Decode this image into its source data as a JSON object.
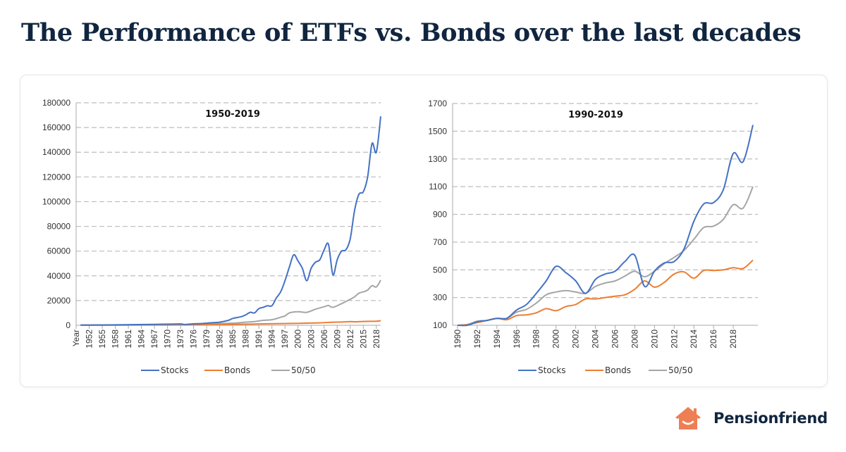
{
  "header": {
    "title": "The Performance of ETFs vs. Bonds over the last decades"
  },
  "brand": {
    "name": "Pensionfriend",
    "logo_icon": "house-smile-icon",
    "color": "#ee7f55",
    "text_color": "#10253f"
  },
  "chart_data": [
    {
      "type": "line",
      "title": "1950-2019",
      "xlabel": "",
      "ylabel": "",
      "xlim": [
        1949,
        2019
      ],
      "ylim": [
        0,
        180000
      ],
      "yticks": [
        0,
        20000,
        40000,
        60000,
        80000,
        100000,
        120000,
        140000,
        160000,
        180000
      ],
      "xtick_labels": [
        "Year",
        "1952",
        "1955",
        "1958",
        "1961",
        "1964",
        "1967",
        "1970",
        "1973",
        "1976",
        "1979",
        "1982",
        "1985",
        "1988",
        "1991",
        "1994",
        "1997",
        "2000",
        "2003",
        "2006",
        "2009",
        "2012",
        "2015",
        "2018"
      ],
      "grid": true,
      "legend": "bottom",
      "series": [
        {
          "name": "Stocks",
          "color": "#4472c4",
          "points": [
            [
              1950,
              100
            ],
            [
              1955,
              250
            ],
            [
              1960,
              400
            ],
            [
              1965,
              650
            ],
            [
              1970,
              900
            ],
            [
              1973,
              1100
            ],
            [
              1974,
              600
            ],
            [
              1976,
              1200
            ],
            [
              1978,
              1400
            ],
            [
              1980,
              2000
            ],
            [
              1982,
              2500
            ],
            [
              1984,
              4000
            ],
            [
              1985,
              5500
            ],
            [
              1987,
              7000
            ],
            [
              1988,
              8500
            ],
            [
              1989,
              10500
            ],
            [
              1990,
              10000
            ],
            [
              1991,
              13500
            ],
            [
              1992,
              14500
            ],
            [
              1993,
              15800
            ],
            [
              1994,
              15800
            ],
            [
              1995,
              22000
            ],
            [
              1996,
              27000
            ],
            [
              1997,
              36000
            ],
            [
              1998,
              47000
            ],
            [
              1999,
              57000
            ],
            [
              2000,
              52000
            ],
            [
              2001,
              46000
            ],
            [
              2002,
              36000
            ],
            [
              2003,
              46000
            ],
            [
              2004,
              51000
            ],
            [
              2005,
              53000
            ],
            [
              2006,
              61000
            ],
            [
              2007,
              65500
            ],
            [
              2008,
              41000
            ],
            [
              2009,
              53000
            ],
            [
              2010,
              60000
            ],
            [
              2011,
              61000
            ],
            [
              2012,
              70000
            ],
            [
              2013,
              93000
            ],
            [
              2014,
              106000
            ],
            [
              2015,
              108000
            ],
            [
              2016,
              120000
            ],
            [
              2017,
              147000
            ],
            [
              2018,
              140000
            ],
            [
              2019,
              169000
            ]
          ]
        },
        {
          "name": "Bonds",
          "color": "#ed7d31",
          "points": [
            [
              1950,
              100
            ],
            [
              1960,
              150
            ],
            [
              1970,
              250
            ],
            [
              1980,
              450
            ],
            [
              1985,
              700
            ],
            [
              1990,
              1000
            ],
            [
              1995,
              1300
            ],
            [
              2000,
              1600
            ],
            [
              2005,
              2000
            ],
            [
              2008,
              2500
            ],
            [
              2010,
              2600
            ],
            [
              2012,
              3000
            ],
            [
              2013,
              2800
            ],
            [
              2015,
              3100
            ],
            [
              2018,
              3300
            ],
            [
              2019,
              3700
            ]
          ]
        },
        {
          "name": "50/50",
          "color": "#a5a5a5",
          "points": [
            [
              1950,
              100
            ],
            [
              1960,
              250
            ],
            [
              1970,
              500
            ],
            [
              1975,
              600
            ],
            [
              1980,
              1100
            ],
            [
              1985,
              1700
            ],
            [
              1988,
              2500
            ],
            [
              1990,
              3000
            ],
            [
              1992,
              4000
            ],
            [
              1994,
              4500
            ],
            [
              1996,
              6500
            ],
            [
              1997,
              7500
            ],
            [
              1998,
              10000
            ],
            [
              2000,
              11000
            ],
            [
              2002,
              10500
            ],
            [
              2004,
              13000
            ],
            [
              2006,
              15000
            ],
            [
              2007,
              16000
            ],
            [
              2008,
              14500
            ],
            [
              2010,
              17500
            ],
            [
              2012,
              21000
            ],
            [
              2013,
              23000
            ],
            [
              2014,
              26000
            ],
            [
              2015,
              27000
            ],
            [
              2016,
              28500
            ],
            [
              2017,
              32000
            ],
            [
              2018,
              31000
            ],
            [
              2019,
              36500
            ]
          ]
        }
      ]
    },
    {
      "type": "line",
      "title": "1990-2019",
      "xlabel": "",
      "ylabel": "",
      "xlim": [
        1989.5,
        2020.5
      ],
      "ylim": [
        100,
        1700
      ],
      "yticks": [
        100,
        300,
        500,
        700,
        900,
        1100,
        1300,
        1500,
        1700
      ],
      "xtick_labels": [
        "1990",
        "1992",
        "1994",
        "1996",
        "1998",
        "2000",
        "2002",
        "2004",
        "2006",
        "2008",
        "2010",
        "2012",
        "2014",
        "2016",
        "2018"
      ],
      "grid": true,
      "legend": "bottom",
      "series": [
        {
          "name": "Stocks",
          "color": "#4472c4",
          "points": [
            [
              1990,
              100
            ],
            [
              1991,
              100
            ],
            [
              1992,
              125
            ],
            [
              1993,
              135
            ],
            [
              1994,
              150
            ],
            [
              1995,
              150
            ],
            [
              1996,
              210
            ],
            [
              1997,
              250
            ],
            [
              1998,
              330
            ],
            [
              1999,
              420
            ],
            [
              2000,
              525
            ],
            [
              2001,
              480
            ],
            [
              2002,
              420
            ],
            [
              2003,
              330
            ],
            [
              2004,
              430
            ],
            [
              2005,
              470
            ],
            [
              2006,
              490
            ],
            [
              2007,
              560
            ],
            [
              2008,
              605
            ],
            [
              2009,
              380
            ],
            [
              2010,
              490
            ],
            [
              2011,
              550
            ],
            [
              2012,
              560
            ],
            [
              2013,
              650
            ],
            [
              2014,
              850
            ],
            [
              2015,
              975
            ],
            [
              2016,
              985
            ],
            [
              2017,
              1080
            ],
            [
              2018,
              1340
            ],
            [
              2019,
              1280
            ],
            [
              2020,
              1545
            ]
          ]
        },
        {
          "name": "Bonds",
          "color": "#ed7d31",
          "points": [
            [
              1990,
              100
            ],
            [
              1991,
              105
            ],
            [
              1992,
              120
            ],
            [
              1993,
              135
            ],
            [
              1994,
              150
            ],
            [
              1995,
              140
            ],
            [
              1996,
              170
            ],
            [
              1997,
              175
            ],
            [
              1998,
              190
            ],
            [
              1999,
              220
            ],
            [
              2000,
              205
            ],
            [
              2001,
              235
            ],
            [
              2002,
              250
            ],
            [
              2003,
              290
            ],
            [
              2004,
              290
            ],
            [
              2005,
              300
            ],
            [
              2006,
              310
            ],
            [
              2007,
              320
            ],
            [
              2008,
              360
            ],
            [
              2009,
              420
            ],
            [
              2010,
              375
            ],
            [
              2011,
              410
            ],
            [
              2012,
              470
            ],
            [
              2013,
              485
            ],
            [
              2014,
              440
            ],
            [
              2015,
              495
            ],
            [
              2016,
              495
            ],
            [
              2017,
              500
            ],
            [
              2018,
              515
            ],
            [
              2019,
              510
            ],
            [
              2020,
              570
            ]
          ]
        },
        {
          "name": "50/50",
          "color": "#a5a5a5",
          "points": [
            [
              1990,
              100
            ],
            [
              1991,
              105
            ],
            [
              1992,
              130
            ],
            [
              1993,
              135
            ],
            [
              1994,
              150
            ],
            [
              1995,
              150
            ],
            [
              1996,
              195
            ],
            [
              1997,
              215
            ],
            [
              1998,
              260
            ],
            [
              1999,
              320
            ],
            [
              2000,
              340
            ],
            [
              2001,
              350
            ],
            [
              2002,
              340
            ],
            [
              2003,
              330
            ],
            [
              2004,
              380
            ],
            [
              2005,
              405
            ],
            [
              2006,
              420
            ],
            [
              2007,
              455
            ],
            [
              2008,
              490
            ],
            [
              2009,
              450
            ],
            [
              2010,
              490
            ],
            [
              2011,
              545
            ],
            [
              2012,
              590
            ],
            [
              2013,
              640
            ],
            [
              2014,
              720
            ],
            [
              2015,
              805
            ],
            [
              2016,
              815
            ],
            [
              2017,
              865
            ],
            [
              2018,
              970
            ],
            [
              2019,
              945
            ],
            [
              2020,
              1100
            ]
          ]
        }
      ]
    }
  ]
}
